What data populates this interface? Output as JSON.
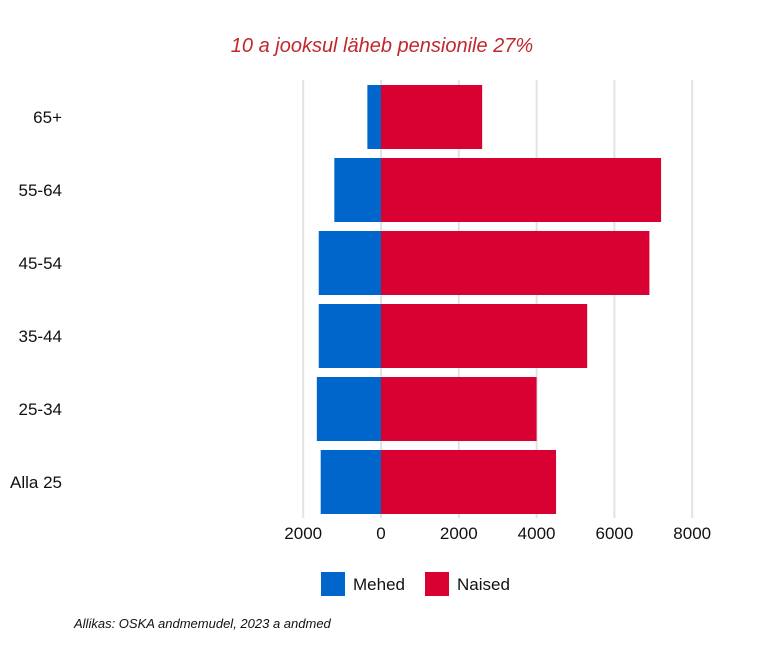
{
  "chart_data": {
    "type": "bar",
    "orientation": "horizontal",
    "layout": "population-pyramid",
    "title": "10 a jooksul läheb pensionile 27%",
    "categories": [
      "65+",
      "55-64",
      "45-54",
      "35-44",
      "25-34",
      "Alla 25"
    ],
    "series": [
      {
        "name": "Mehed",
        "values": [
          -350,
          -1200,
          -1600,
          -1600,
          -1650,
          -1550
        ],
        "color": "#0066cc"
      },
      {
        "name": "Naised",
        "values": [
          2600,
          7200,
          6900,
          5300,
          4000,
          4500
        ],
        "color": "#d90032"
      }
    ],
    "x_ticks": [
      -2000,
      0,
      2000,
      4000,
      6000,
      8000
    ],
    "x_tick_labels": [
      "2000",
      "0",
      "2000",
      "4000",
      "6000",
      "8000"
    ],
    "xlim": [
      -2000,
      8000
    ],
    "grid": "vertical",
    "legend_position": "bottom",
    "source": "Allikas: OSKA andmemudel, 2023 a andmed",
    "colors": {
      "title": "#c0282d",
      "grid": "#e3e3e3"
    }
  }
}
